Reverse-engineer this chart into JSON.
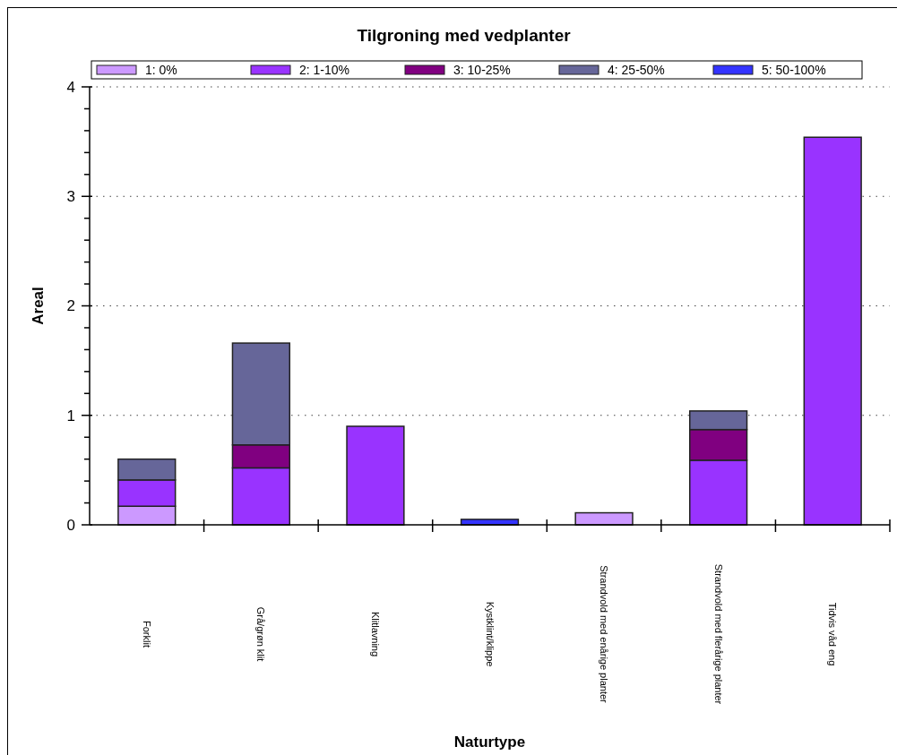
{
  "chart_data": {
    "type": "bar",
    "title": "Tilgroning med vedplanter",
    "xlabel": "Naturtype",
    "ylabel": "Areal",
    "categories": [
      "Forklit",
      "Grå/grøn klit",
      "Klitlavning",
      "Kystklint/klippe",
      "Strandvold med enårige planter",
      "Strandvold med flerårige planter",
      "Tidvis våd eng"
    ],
    "stacked": true,
    "series": [
      {
        "name": "1: 0%",
        "color": "#cc99ff",
        "values": [
          0.17,
          null,
          null,
          null,
          0.11,
          null,
          null
        ]
      },
      {
        "name": "2: 1-10%",
        "color": "#9933ff",
        "values": [
          0.24,
          0.52,
          0.9,
          null,
          null,
          0.59,
          3.54
        ]
      },
      {
        "name": "3: 10-25%",
        "color": "#800080",
        "values": [
          null,
          0.21,
          null,
          null,
          null,
          0.28,
          null
        ]
      },
      {
        "name": "4: 25-50%",
        "color": "#666699",
        "values": [
          0.19,
          0.93,
          null,
          null,
          null,
          0.17,
          null
        ]
      },
      {
        "name": "5: 50-100%",
        "color": "#3333ff",
        "values": [
          null,
          null,
          null,
          0.05,
          null,
          null,
          null
        ]
      }
    ],
    "ylim": [
      0,
      4
    ],
    "yticks": [
      0,
      {
        "value": 0.2,
        "label": null
      },
      {
        "value": 0.4,
        "label": null
      },
      {
        "value": 0.6,
        "label": null
      },
      {
        "value": 0.8,
        "label": null
      },
      1,
      {
        "value": 1.2,
        "label": null
      },
      {
        "value": 1.4,
        "label": null
      },
      {
        "value": 1.6,
        "label": null
      },
      {
        "value": 1.8,
        "label": null
      },
      2,
      {
        "value": 2.2,
        "label": null
      },
      {
        "value": 2.4,
        "label": null
      },
      {
        "value": 2.6,
        "label": null
      },
      {
        "value": 2.8,
        "label": null
      },
      3,
      {
        "value": 3.2,
        "label": null
      },
      {
        "value": 3.4,
        "label": null
      },
      {
        "value": 3.6,
        "label": null
      },
      {
        "value": 3.8,
        "label": null
      },
      4
    ],
    "grid": "y",
    "legend": "top"
  }
}
